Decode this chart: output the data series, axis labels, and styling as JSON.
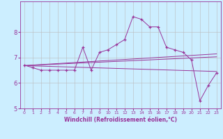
{
  "title": "",
  "xlabel": "Windchill (Refroidissement éolien,°C)",
  "background_color": "#cceeff",
  "grid_color": "#bbbbbb",
  "line_color": "#993399",
  "x_values": [
    0,
    1,
    2,
    3,
    4,
    5,
    6,
    7,
    8,
    9,
    10,
    11,
    12,
    13,
    14,
    15,
    16,
    17,
    18,
    19,
    20,
    21,
    22,
    23
  ],
  "series": {
    "main": [
      6.7,
      6.6,
      6.5,
      6.5,
      6.5,
      6.5,
      6.5,
      7.4,
      6.5,
      7.2,
      7.3,
      7.5,
      7.7,
      8.6,
      8.5,
      8.2,
      8.2,
      7.4,
      7.3,
      7.2,
      6.9,
      5.3,
      5.9,
      6.4
    ],
    "trend1": [
      6.68,
      6.7,
      6.72,
      6.74,
      6.76,
      6.78,
      6.8,
      6.82,
      6.84,
      6.86,
      6.88,
      6.9,
      6.92,
      6.94,
      6.96,
      6.98,
      7.0,
      7.02,
      7.04,
      7.06,
      7.08,
      7.1,
      7.12,
      7.14
    ],
    "trend2": [
      6.68,
      6.695,
      6.71,
      6.725,
      6.74,
      6.755,
      6.77,
      6.785,
      6.8,
      6.815,
      6.83,
      6.845,
      6.86,
      6.875,
      6.89,
      6.905,
      6.92,
      6.935,
      6.95,
      6.965,
      6.98,
      6.995,
      7.01,
      7.025
    ],
    "trend3": [
      6.68,
      6.67,
      6.66,
      6.65,
      6.64,
      6.63,
      6.62,
      6.61,
      6.6,
      6.59,
      6.58,
      6.57,
      6.56,
      6.55,
      6.54,
      6.53,
      6.52,
      6.51,
      6.5,
      6.49,
      6.48,
      6.47,
      6.46,
      6.45
    ]
  },
  "ylim": [
    5.0,
    9.2
  ],
  "yticks": [
    5,
    6,
    7,
    8
  ],
  "xticks": [
    0,
    1,
    2,
    3,
    4,
    5,
    6,
    7,
    8,
    9,
    10,
    11,
    12,
    13,
    14,
    15,
    16,
    17,
    18,
    19,
    20,
    21,
    22,
    23
  ],
  "xlabel_fontsize": 5.5,
  "tick_fontsize_x": 4.5,
  "tick_fontsize_y": 6
}
